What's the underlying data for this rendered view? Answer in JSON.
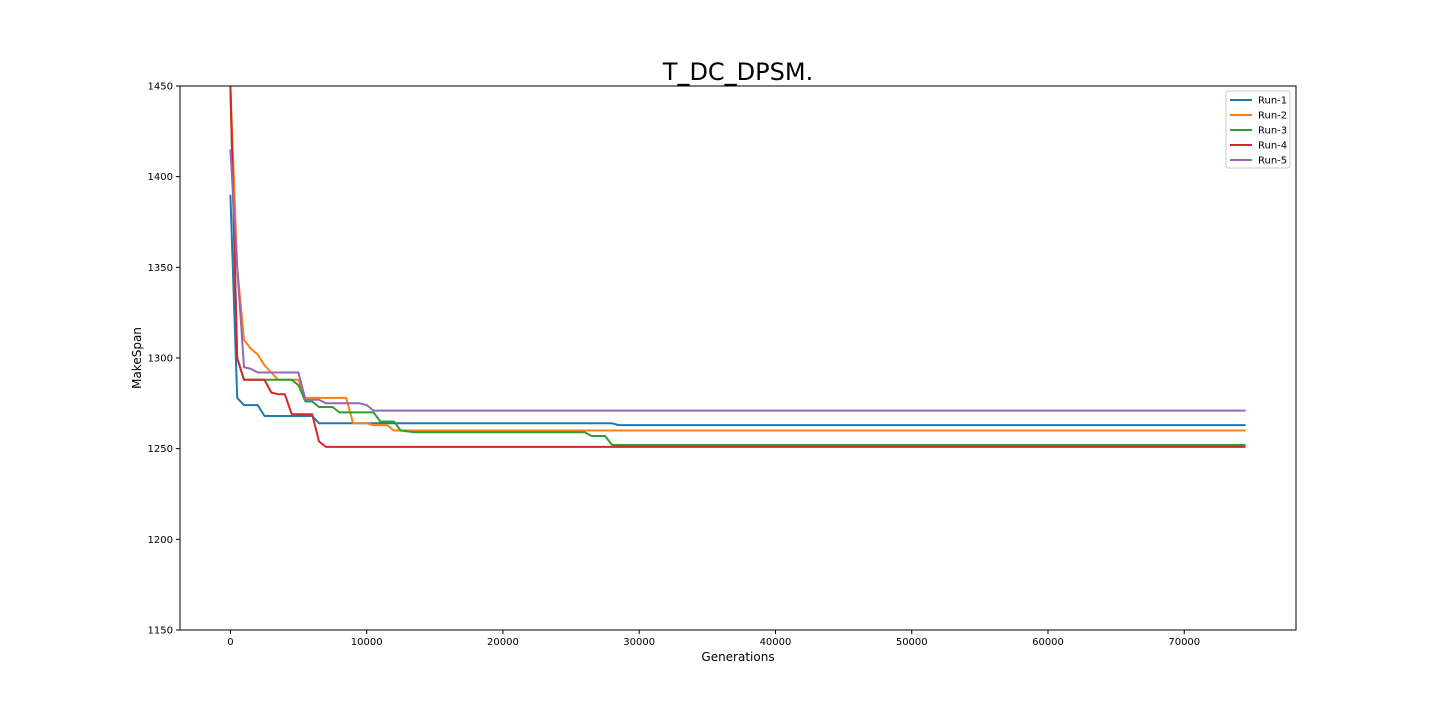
{
  "chart_data": {
    "type": "line",
    "title": "T_DC_DPSM.",
    "xlabel": "Generations",
    "ylabel": "MakeSpan",
    "xlim": [
      -3700,
      78200
    ],
    "ylim": [
      1150,
      1450
    ],
    "xticks": [
      0,
      10000,
      20000,
      30000,
      40000,
      50000,
      60000,
      70000
    ],
    "yticks": [
      1150,
      1200,
      1250,
      1300,
      1350,
      1400,
      1450
    ],
    "grid": false,
    "legend_position": "top-right",
    "series": [
      {
        "name": "Run-1",
        "color": "#1f77b4",
        "points": [
          [
            0,
            1390
          ],
          [
            500,
            1278
          ],
          [
            1000,
            1274
          ],
          [
            2000,
            1274
          ],
          [
            2500,
            1268
          ],
          [
            3000,
            1268
          ],
          [
            4000,
            1268
          ],
          [
            5000,
            1268
          ],
          [
            6000,
            1268
          ],
          [
            6500,
            1264
          ],
          [
            7000,
            1264
          ],
          [
            10000,
            1264
          ],
          [
            20000,
            1264
          ],
          [
            28000,
            1264
          ],
          [
            28500,
            1263
          ],
          [
            40000,
            1263
          ],
          [
            60000,
            1263
          ],
          [
            74500,
            1263
          ]
        ]
      },
      {
        "name": "Run-2",
        "color": "#ff7f0e",
        "points": [
          [
            0,
            1450
          ],
          [
            500,
            1350
          ],
          [
            1000,
            1310
          ],
          [
            1500,
            1305
          ],
          [
            2000,
            1302
          ],
          [
            2500,
            1296
          ],
          [
            3000,
            1292
          ],
          [
            3500,
            1288
          ],
          [
            4500,
            1288
          ],
          [
            5000,
            1288
          ],
          [
            5500,
            1278
          ],
          [
            6500,
            1278
          ],
          [
            7000,
            1278
          ],
          [
            8500,
            1278
          ],
          [
            9000,
            1264
          ],
          [
            10000,
            1264
          ],
          [
            10500,
            1263
          ],
          [
            11500,
            1263
          ],
          [
            12000,
            1260
          ],
          [
            20000,
            1260
          ],
          [
            30000,
            1260
          ],
          [
            50000,
            1260
          ],
          [
            74500,
            1260
          ]
        ]
      },
      {
        "name": "Run-3",
        "color": "#2ca02c",
        "points": [
          [
            0,
            1450
          ],
          [
            500,
            1300
          ],
          [
            1000,
            1288
          ],
          [
            2000,
            1288
          ],
          [
            3500,
            1288
          ],
          [
            4500,
            1288
          ],
          [
            5000,
            1285
          ],
          [
            5500,
            1276
          ],
          [
            6000,
            1276
          ],
          [
            6500,
            1273
          ],
          [
            7500,
            1273
          ],
          [
            8000,
            1270
          ],
          [
            10500,
            1270
          ],
          [
            11000,
            1265
          ],
          [
            12000,
            1265
          ],
          [
            12500,
            1260
          ],
          [
            13500,
            1259
          ],
          [
            20000,
            1259
          ],
          [
            26000,
            1259
          ],
          [
            26500,
            1257
          ],
          [
            27500,
            1257
          ],
          [
            28000,
            1252
          ],
          [
            40000,
            1252
          ],
          [
            60000,
            1252
          ],
          [
            74500,
            1252
          ]
        ]
      },
      {
        "name": "Run-4",
        "color": "#d62728",
        "points": [
          [
            0,
            1450
          ],
          [
            500,
            1300
          ],
          [
            1000,
            1288
          ],
          [
            2500,
            1288
          ],
          [
            3000,
            1281
          ],
          [
            3500,
            1280
          ],
          [
            4000,
            1280
          ],
          [
            4500,
            1269
          ],
          [
            6000,
            1269
          ],
          [
            6500,
            1254
          ],
          [
            7000,
            1251
          ],
          [
            10000,
            1251
          ],
          [
            20000,
            1251
          ],
          [
            40000,
            1251
          ],
          [
            60000,
            1251
          ],
          [
            74500,
            1251
          ]
        ]
      },
      {
        "name": "Run-5",
        "color": "#9467bd",
        "points": [
          [
            0,
            1415
          ],
          [
            500,
            1350
          ],
          [
            1000,
            1295
          ],
          [
            1500,
            1294
          ],
          [
            2000,
            1292
          ],
          [
            3000,
            1292
          ],
          [
            4000,
            1292
          ],
          [
            5000,
            1292
          ],
          [
            5500,
            1277
          ],
          [
            6500,
            1277
          ],
          [
            7000,
            1275
          ],
          [
            8000,
            1275
          ],
          [
            9500,
            1275
          ],
          [
            10000,
            1274
          ],
          [
            10500,
            1271
          ],
          [
            20000,
            1271
          ],
          [
            40000,
            1271
          ],
          [
            60000,
            1271
          ],
          [
            74500,
            1271
          ]
        ]
      }
    ]
  }
}
